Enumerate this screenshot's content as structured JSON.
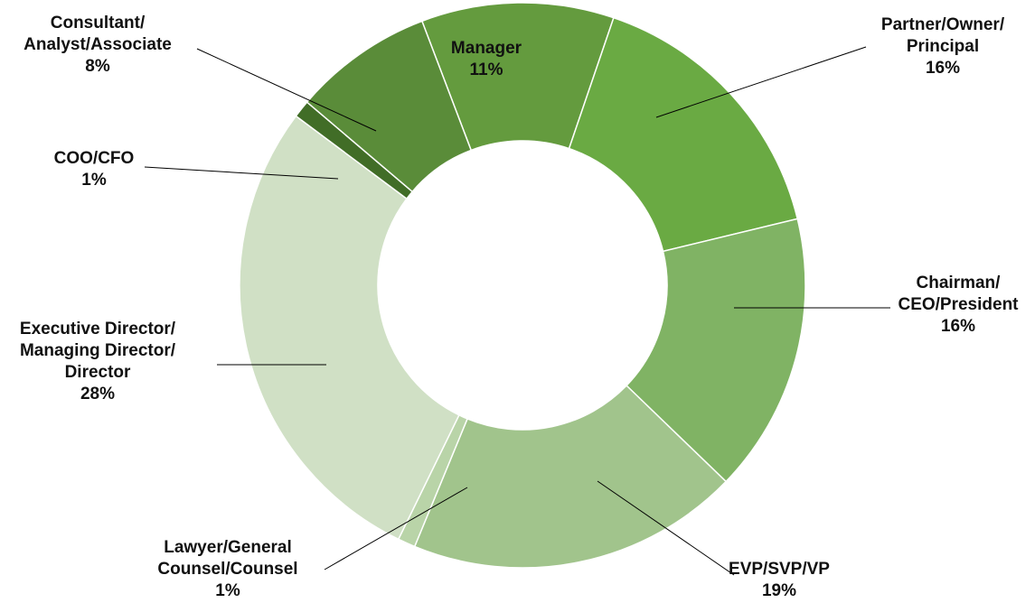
{
  "chart_data": {
    "type": "pie",
    "style": "donut",
    "title": "",
    "legend": "none",
    "slices": [
      {
        "label": [
          "Manager"
        ],
        "value": 11,
        "value_label": "11%",
        "color": "#649b3e"
      },
      {
        "label": [
          "Partner/Owner/",
          "Principal"
        ],
        "value": 16,
        "value_label": "16%",
        "color": "#6aaa43"
      },
      {
        "label": [
          "Chairman/",
          "CEO/President"
        ],
        "value": 16,
        "value_label": "16%",
        "color": "#80b364"
      },
      {
        "label": [
          "EVP/SVP/VP"
        ],
        "value": 19,
        "value_label": "19%",
        "color": "#a1c48c"
      },
      {
        "label": [
          "Lawyer/General",
          "Counsel/Counsel"
        ],
        "value": 1,
        "value_label": "1%",
        "color": "#b9d4a8"
      },
      {
        "label": [
          "Executive Director/",
          "Managing Director/",
          "Director"
        ],
        "value": 28,
        "value_label": "28%",
        "color": "#d0e0c5"
      },
      {
        "label": [
          "COO/CFO"
        ],
        "value": 1,
        "value_label": "1%",
        "color": "#416d27"
      },
      {
        "label": [
          "Consultant/",
          "Analyst/Associate"
        ],
        "value": 8,
        "value_label": "8%",
        "color": "#5a8c39"
      }
    ]
  }
}
